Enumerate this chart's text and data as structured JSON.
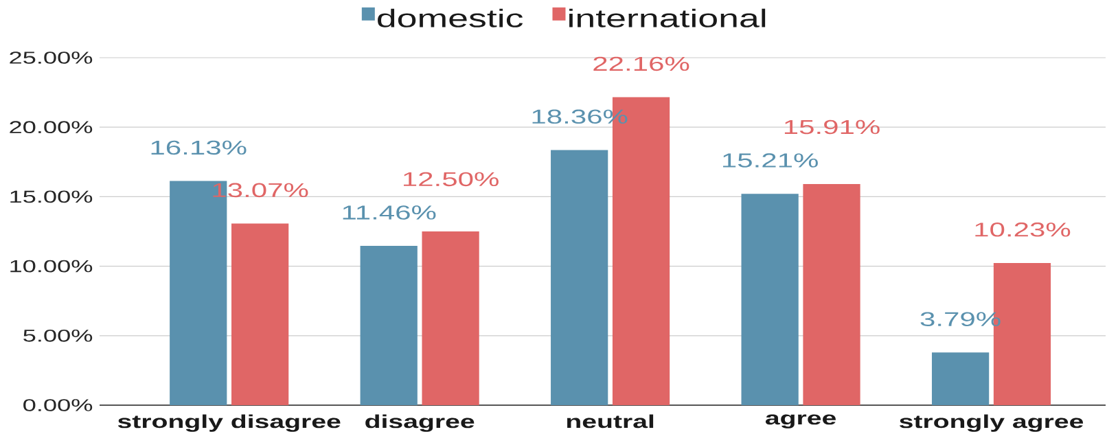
{
  "chart_data": {
    "type": "bar",
    "categories": [
      "strongly disagree",
      "disagree",
      "neutral",
      "agree",
      "strongly agree"
    ],
    "series": [
      {
        "name": "domestic",
        "color": "#5a91ae",
        "values": [
          16.13,
          11.46,
          18.36,
          15.21,
          3.79
        ],
        "value_labels": [
          "16.13%",
          "11.46%",
          "18.36%",
          "15.21%",
          "3.79%"
        ]
      },
      {
        "name": "international",
        "color": "#e06666",
        "values": [
          13.07,
          12.5,
          22.16,
          15.91,
          10.23
        ],
        "value_labels": [
          "13.07%",
          "12.50%",
          "22.16%",
          "15.91%",
          "10.23%"
        ]
      }
    ],
    "ylim": [
      0,
      25
    ],
    "yticks": [
      {
        "value": 0,
        "label": "0.00%"
      },
      {
        "value": 5,
        "label": "5.00%"
      },
      {
        "value": 10,
        "label": "10.00%"
      },
      {
        "value": 15,
        "label": "15.00%"
      },
      {
        "value": 20,
        "label": "20.00%"
      },
      {
        "value": 25,
        "label": "25.00%"
      }
    ],
    "grid": "y",
    "legend": "top"
  }
}
